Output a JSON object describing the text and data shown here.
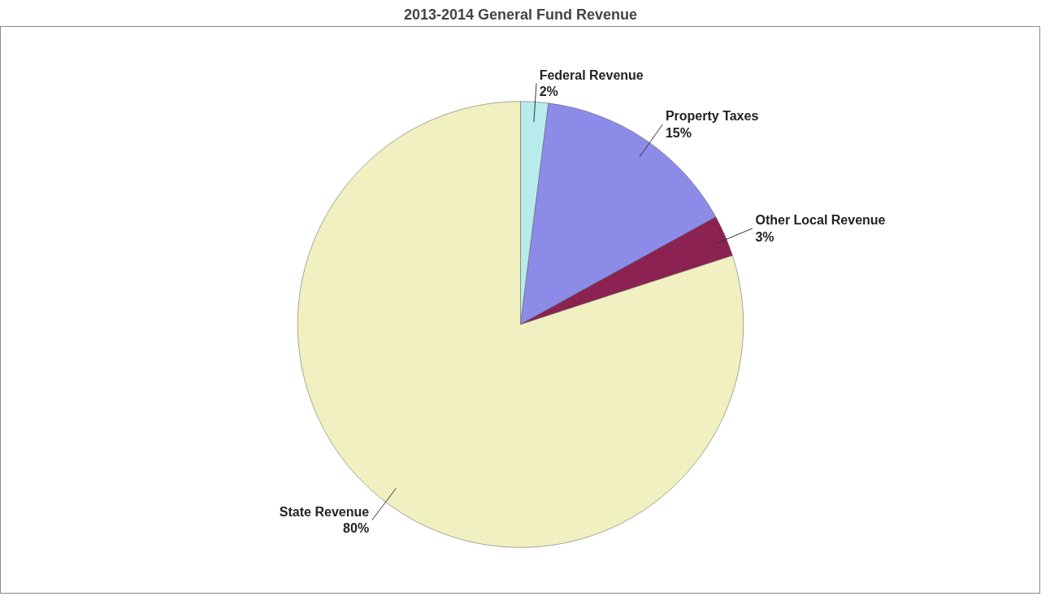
{
  "chart_data": {
    "type": "pie",
    "title": "2013-2014 General Fund Revenue",
    "categories": [
      "Federal Revenue",
      "Property Taxes",
      "Other Local Revenue",
      "State Revenue"
    ],
    "values": [
      2,
      15,
      3,
      80
    ],
    "colors": [
      "#b8ecec",
      "#8c8ce8",
      "#8c2252",
      "#f0f0c0"
    ],
    "value_labels": [
      "2%",
      "15%",
      "3%",
      "80%"
    ]
  }
}
